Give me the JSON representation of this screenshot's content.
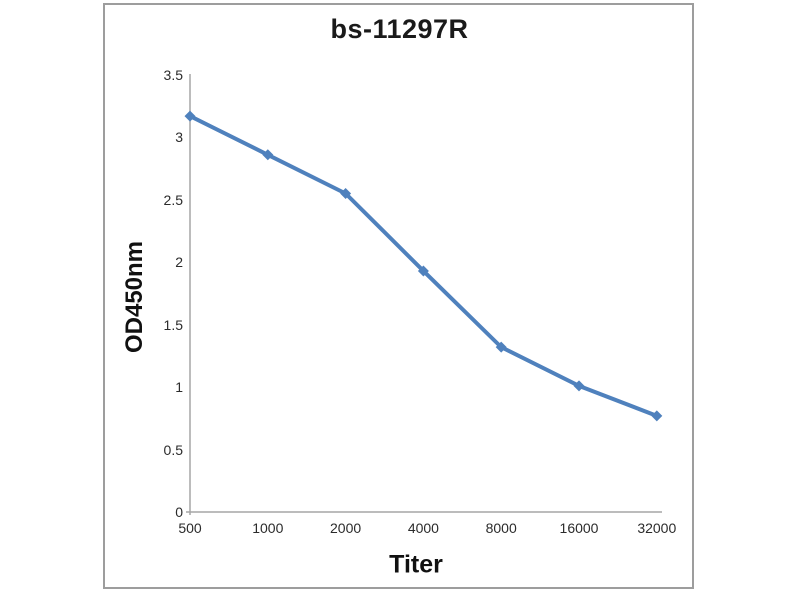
{
  "chart_data": {
    "type": "line",
    "title": "bs-11297R",
    "xlabel": "Titer",
    "ylabel": "OD450nm",
    "categories": [
      "500",
      "1000",
      "2000",
      "4000",
      "8000",
      "16000",
      "32000"
    ],
    "series": [
      {
        "name": "OD450nm",
        "values": [
          3.17,
          2.86,
          2.55,
          1.93,
          1.32,
          1.01,
          0.77
        ]
      }
    ],
    "ylim": [
      0,
      3.5
    ],
    "yticks": [
      "0",
      "0.5",
      "1",
      "1.5",
      "2",
      "2.5",
      "3",
      "3.5"
    ],
    "grid": false,
    "legend": "none",
    "marker": "diamond",
    "line_color": "#4f81bd",
    "axis_color": "#a6a6a6",
    "panel_border_color": "#9d9d9d",
    "text_color": "#1a1a1a"
  }
}
